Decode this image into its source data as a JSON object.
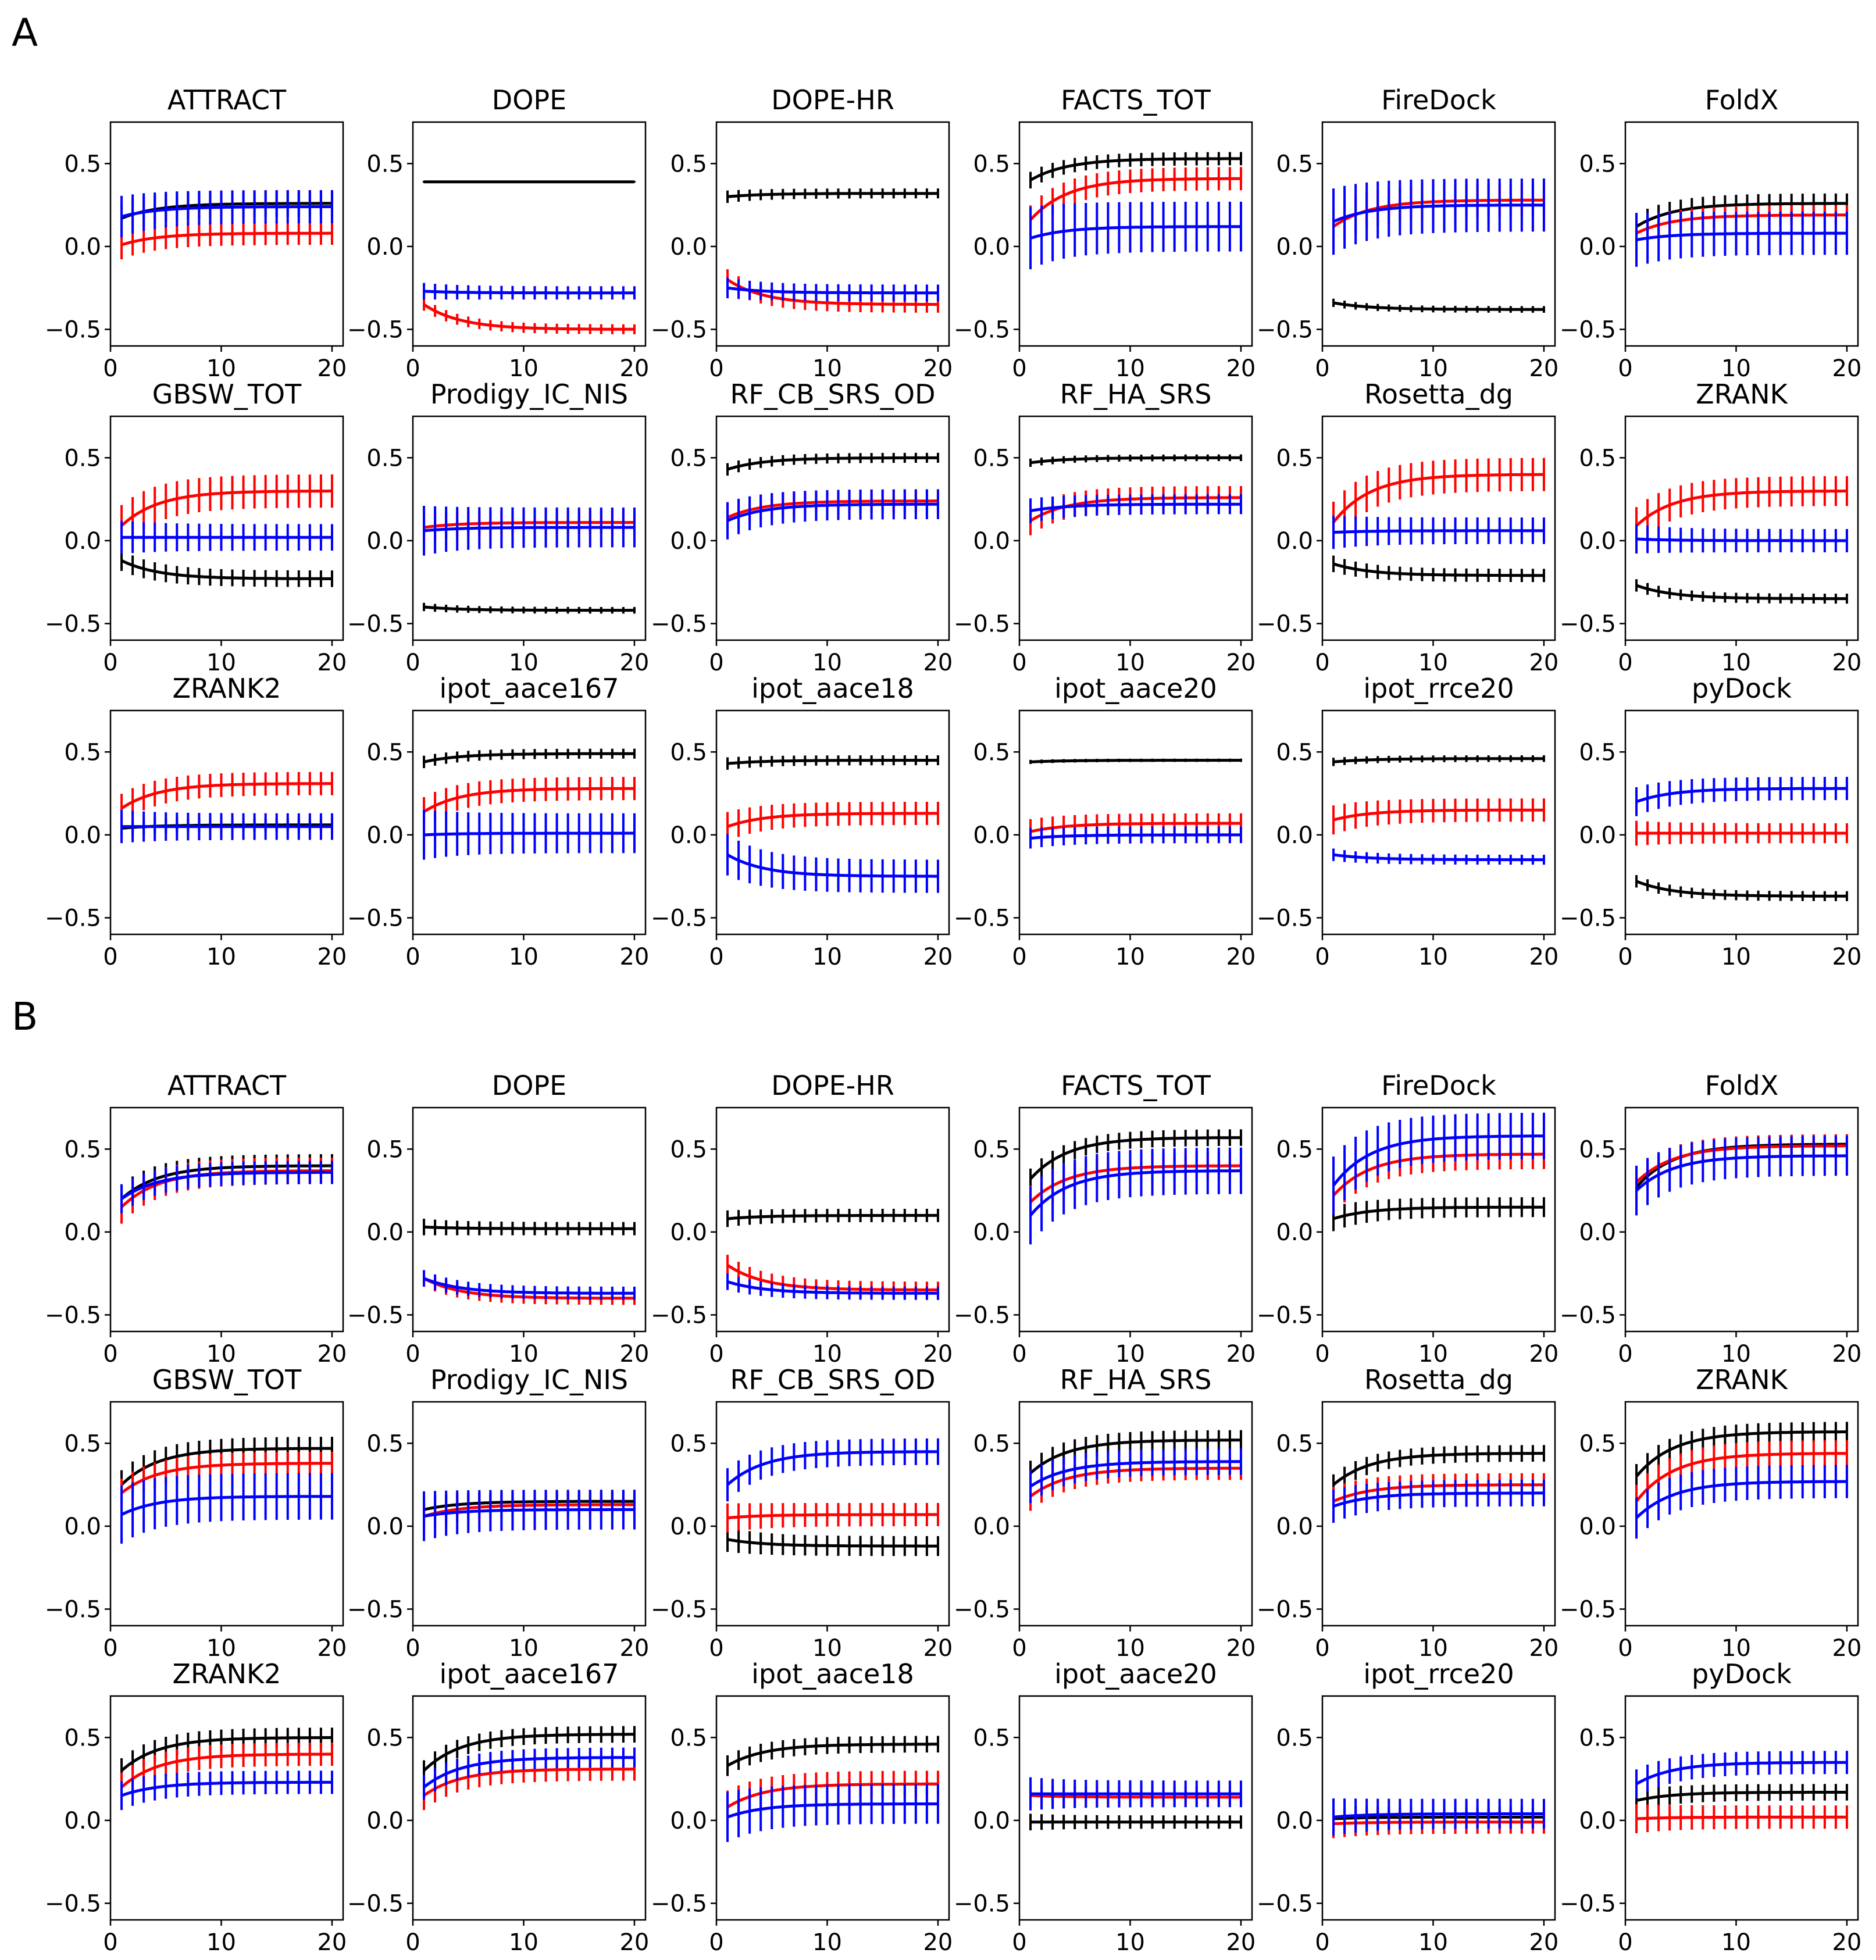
{
  "figure": {
    "panel_labels": [
      "A",
      "B"
    ]
  },
  "colors": {
    "black": "#000000",
    "red": "#ff0000",
    "blue": "#0000ff"
  },
  "chart_data": [
    {
      "panel": "A",
      "type": "line",
      "x_range": [
        1,
        20
      ],
      "xticks": [
        0,
        10,
        20
      ],
      "ylim": [
        -0.6,
        0.75
      ],
      "yticks": [
        -0.5,
        0.0,
        0.5
      ],
      "ytick_labels": [
        "−0.5",
        "0.0",
        "0.5"
      ],
      "legend": "none",
      "subplots": [
        {
          "title": "ATTRACT",
          "series": [
            {
              "name": "black",
              "start": 0.17,
              "end": 0.26,
              "err": 0.08
            },
            {
              "name": "red",
              "start": 0.01,
              "end": 0.08,
              "err": 0.07
            },
            {
              "name": "blue",
              "start": 0.18,
              "end": 0.24,
              "err": 0.1
            }
          ]
        },
        {
          "title": "DOPE",
          "series": [
            {
              "name": "black",
              "start": 0.39,
              "end": 0.39,
              "err": 0.005
            },
            {
              "name": "red",
              "start": -0.35,
              "end": -0.5,
              "err": 0.03
            },
            {
              "name": "blue",
              "start": -0.27,
              "end": -0.28,
              "err": 0.04
            }
          ]
        },
        {
          "title": "DOPE-HR",
          "series": [
            {
              "name": "black",
              "start": 0.3,
              "end": 0.32,
              "err": 0.03
            },
            {
              "name": "red",
              "start": -0.2,
              "end": -0.35,
              "err": 0.05
            },
            {
              "name": "blue",
              "start": -0.25,
              "end": -0.28,
              "err": 0.05
            }
          ]
        },
        {
          "title": "FACTS_TOT",
          "series": [
            {
              "name": "black",
              "start": 0.4,
              "end": 0.53,
              "err": 0.04
            },
            {
              "name": "red",
              "start": 0.16,
              "end": 0.41,
              "err": 0.07
            },
            {
              "name": "blue",
              "start": 0.05,
              "end": 0.12,
              "err": 0.15
            }
          ]
        },
        {
          "title": "FireDock",
          "series": [
            {
              "name": "black",
              "start": -0.34,
              "end": -0.38,
              "err": 0.02
            },
            {
              "name": "red",
              "start": 0.12,
              "end": 0.28,
              "err": 0.1
            },
            {
              "name": "blue",
              "start": 0.15,
              "end": 0.25,
              "err": 0.16
            }
          ]
        },
        {
          "title": "FoldX",
          "series": [
            {
              "name": "black",
              "start": 0.12,
              "end": 0.26,
              "err": 0.06
            },
            {
              "name": "red",
              "start": 0.08,
              "end": 0.19,
              "err": 0.06
            },
            {
              "name": "blue",
              "start": 0.04,
              "end": 0.08,
              "err": 0.13
            }
          ]
        },
        {
          "title": "GBSW_TOT",
          "series": [
            {
              "name": "black",
              "start": -0.12,
              "end": -0.23,
              "err": 0.05
            },
            {
              "name": "red",
              "start": 0.09,
              "end": 0.3,
              "err": 0.1
            },
            {
              "name": "blue",
              "start": 0.02,
              "end": 0.02,
              "err": 0.08
            }
          ]
        },
        {
          "title": "Prodigy_IC_NIS",
          "series": [
            {
              "name": "black",
              "start": -0.4,
              "end": -0.42,
              "err": 0.02
            },
            {
              "name": "red",
              "start": 0.08,
              "end": 0.11,
              "err": 0.07
            },
            {
              "name": "blue",
              "start": 0.06,
              "end": 0.08,
              "err": 0.12
            }
          ]
        },
        {
          "title": "RF_CB_SRS_OD",
          "series": [
            {
              "name": "black",
              "start": 0.43,
              "end": 0.5,
              "err": 0.03
            },
            {
              "name": "red",
              "start": 0.14,
              "end": 0.24,
              "err": 0.07
            },
            {
              "name": "blue",
              "start": 0.12,
              "end": 0.22,
              "err": 0.09
            }
          ]
        },
        {
          "title": "RF_HA_SRS",
          "series": [
            {
              "name": "black",
              "start": 0.47,
              "end": 0.5,
              "err": 0.02
            },
            {
              "name": "red",
              "start": 0.12,
              "end": 0.26,
              "err": 0.07
            },
            {
              "name": "blue",
              "start": 0.18,
              "end": 0.22,
              "err": 0.06
            }
          ]
        },
        {
          "title": "Rosetta_dg",
          "series": [
            {
              "name": "black",
              "start": -0.14,
              "end": -0.21,
              "err": 0.04
            },
            {
              "name": "red",
              "start": 0.11,
              "end": 0.4,
              "err": 0.1
            },
            {
              "name": "blue",
              "start": 0.05,
              "end": 0.06,
              "err": 0.08
            }
          ]
        },
        {
          "title": "ZRANK",
          "series": [
            {
              "name": "black",
              "start": -0.27,
              "end": -0.35,
              "err": 0.03
            },
            {
              "name": "red",
              "start": 0.09,
              "end": 0.3,
              "err": 0.09
            },
            {
              "name": "blue",
              "start": 0.01,
              "end": 0.0,
              "err": 0.07
            }
          ]
        },
        {
          "title": "ZRANK2",
          "series": [
            {
              "name": "black",
              "start": 0.04,
              "end": 0.06,
              "err": 0.04
            },
            {
              "name": "red",
              "start": 0.16,
              "end": 0.31,
              "err": 0.07
            },
            {
              "name": "blue",
              "start": 0.05,
              "end": 0.05,
              "err": 0.08
            }
          ]
        },
        {
          "title": "ipot_aace167",
          "series": [
            {
              "name": "black",
              "start": 0.44,
              "end": 0.49,
              "err": 0.03
            },
            {
              "name": "red",
              "start": 0.14,
              "end": 0.28,
              "err": 0.07
            },
            {
              "name": "blue",
              "start": 0.0,
              "end": 0.01,
              "err": 0.12
            }
          ]
        },
        {
          "title": "ipot_aace18",
          "series": [
            {
              "name": "black",
              "start": 0.43,
              "end": 0.45,
              "err": 0.03
            },
            {
              "name": "red",
              "start": 0.05,
              "end": 0.13,
              "err": 0.07
            },
            {
              "name": "blue",
              "start": -0.12,
              "end": -0.25,
              "err": 0.1
            }
          ]
        },
        {
          "title": "ipot_aace20",
          "series": [
            {
              "name": "black",
              "start": 0.44,
              "end": 0.45,
              "err": 0.01
            },
            {
              "name": "red",
              "start": 0.02,
              "end": 0.07,
              "err": 0.06
            },
            {
              "name": "blue",
              "start": -0.02,
              "end": 0.0,
              "err": 0.05
            }
          ]
        },
        {
          "title": "ipot_rrce20",
          "series": [
            {
              "name": "black",
              "start": 0.44,
              "end": 0.46,
              "err": 0.02
            },
            {
              "name": "red",
              "start": 0.09,
              "end": 0.15,
              "err": 0.07
            },
            {
              "name": "blue",
              "start": -0.12,
              "end": -0.15,
              "err": 0.03
            }
          ]
        },
        {
          "title": "pyDock",
          "series": [
            {
              "name": "black",
              "start": -0.28,
              "end": -0.37,
              "err": 0.03
            },
            {
              "name": "red",
              "start": 0.01,
              "end": 0.01,
              "err": 0.06
            },
            {
              "name": "blue",
              "start": 0.2,
              "end": 0.28,
              "err": 0.07
            }
          ]
        }
      ]
    },
    {
      "panel": "B",
      "type": "line",
      "x_range": [
        1,
        20
      ],
      "xticks": [
        0,
        10,
        20
      ],
      "ylim": [
        -0.6,
        0.75
      ],
      "yticks": [
        -0.5,
        0.0,
        0.5
      ],
      "ytick_labels": [
        "−0.5",
        "0.0",
        "0.5"
      ],
      "legend": "none",
      "subplots": [
        {
          "title": "ATTRACT",
          "series": [
            {
              "name": "black",
              "start": 0.2,
              "end": 0.4,
              "err": 0.07
            },
            {
              "name": "red",
              "start": 0.15,
              "end": 0.37,
              "err": 0.08
            },
            {
              "name": "blue",
              "start": 0.2,
              "end": 0.36,
              "err": 0.07
            }
          ]
        },
        {
          "title": "DOPE",
          "series": [
            {
              "name": "black",
              "start": 0.03,
              "end": 0.02,
              "err": 0.04
            },
            {
              "name": "red",
              "start": -0.28,
              "end": -0.4,
              "err": 0.04
            },
            {
              "name": "blue",
              "start": -0.28,
              "end": -0.37,
              "err": 0.04
            }
          ]
        },
        {
          "title": "DOPE-HR",
          "series": [
            {
              "name": "black",
              "start": 0.08,
              "end": 0.1,
              "err": 0.04
            },
            {
              "name": "red",
              "start": -0.2,
              "end": -0.35,
              "err": 0.05
            },
            {
              "name": "blue",
              "start": -0.3,
              "end": -0.37,
              "err": 0.04
            }
          ]
        },
        {
          "title": "FACTS_TOT",
          "series": [
            {
              "name": "black",
              "start": 0.32,
              "end": 0.57,
              "err": 0.05
            },
            {
              "name": "red",
              "start": 0.18,
              "end": 0.4,
              "err": 0.08
            },
            {
              "name": "blue",
              "start": 0.1,
              "end": 0.37,
              "err": 0.14
            }
          ]
        },
        {
          "title": "FireDock",
          "series": [
            {
              "name": "black",
              "start": 0.08,
              "end": 0.15,
              "err": 0.06
            },
            {
              "name": "red",
              "start": 0.22,
              "end": 0.47,
              "err": 0.09
            },
            {
              "name": "blue",
              "start": 0.28,
              "end": 0.58,
              "err": 0.14
            }
          ]
        },
        {
          "title": "FoldX",
          "series": [
            {
              "name": "black",
              "start": 0.27,
              "end": 0.53,
              "err": 0.06
            },
            {
              "name": "red",
              "start": 0.3,
              "end": 0.52,
              "err": 0.07
            },
            {
              "name": "blue",
              "start": 0.25,
              "end": 0.46,
              "err": 0.12
            }
          ]
        },
        {
          "title": "GBSW_TOT",
          "series": [
            {
              "name": "black",
              "start": 0.25,
              "end": 0.47,
              "err": 0.07
            },
            {
              "name": "red",
              "start": 0.2,
              "end": 0.38,
              "err": 0.07
            },
            {
              "name": "blue",
              "start": 0.07,
              "end": 0.18,
              "err": 0.14
            }
          ]
        },
        {
          "title": "Prodigy_IC_NIS",
          "series": [
            {
              "name": "black",
              "start": 0.1,
              "end": 0.15,
              "err": 0.06
            },
            {
              "name": "red",
              "start": 0.06,
              "end": 0.13,
              "err": 0.07
            },
            {
              "name": "blue",
              "start": 0.06,
              "end": 0.1,
              "err": 0.12
            }
          ]
        },
        {
          "title": "RF_CB_SRS_OD",
          "series": [
            {
              "name": "black",
              "start": -0.08,
              "end": -0.12,
              "err": 0.06
            },
            {
              "name": "red",
              "start": 0.05,
              "end": 0.07,
              "err": 0.07
            },
            {
              "name": "blue",
              "start": 0.25,
              "end": 0.45,
              "err": 0.08
            }
          ]
        },
        {
          "title": "RF_HA_SRS",
          "series": [
            {
              "name": "black",
              "start": 0.32,
              "end": 0.52,
              "err": 0.06
            },
            {
              "name": "red",
              "start": 0.18,
              "end": 0.35,
              "err": 0.07
            },
            {
              "name": "blue",
              "start": 0.24,
              "end": 0.39,
              "err": 0.08
            }
          ]
        },
        {
          "title": "Rosetta_dg",
          "series": [
            {
              "name": "black",
              "start": 0.25,
              "end": 0.44,
              "err": 0.05
            },
            {
              "name": "red",
              "start": 0.15,
              "end": 0.25,
              "err": 0.07
            },
            {
              "name": "blue",
              "start": 0.12,
              "end": 0.2,
              "err": 0.08
            }
          ]
        },
        {
          "title": "ZRANK",
          "series": [
            {
              "name": "black",
              "start": 0.3,
              "end": 0.57,
              "err": 0.06
            },
            {
              "name": "red",
              "start": 0.15,
              "end": 0.44,
              "err": 0.08
            },
            {
              "name": "blue",
              "start": 0.05,
              "end": 0.27,
              "err": 0.1
            }
          ]
        },
        {
          "title": "ZRANK2",
          "series": [
            {
              "name": "black",
              "start": 0.3,
              "end": 0.5,
              "err": 0.06
            },
            {
              "name": "red",
              "start": 0.2,
              "end": 0.4,
              "err": 0.07
            },
            {
              "name": "blue",
              "start": 0.15,
              "end": 0.23,
              "err": 0.07
            }
          ]
        },
        {
          "title": "ipot_aace167",
          "series": [
            {
              "name": "black",
              "start": 0.3,
              "end": 0.52,
              "err": 0.05
            },
            {
              "name": "red",
              "start": 0.15,
              "end": 0.31,
              "err": 0.07
            },
            {
              "name": "blue",
              "start": 0.2,
              "end": 0.38,
              "err": 0.06
            }
          ]
        },
        {
          "title": "ipot_aace18",
          "series": [
            {
              "name": "black",
              "start": 0.33,
              "end": 0.46,
              "err": 0.05
            },
            {
              "name": "red",
              "start": 0.08,
              "end": 0.22,
              "err": 0.08
            },
            {
              "name": "blue",
              "start": 0.02,
              "end": 0.1,
              "err": 0.12
            }
          ]
        },
        {
          "title": "ipot_aace20",
          "series": [
            {
              "name": "black",
              "start": -0.01,
              "end": -0.01,
              "err": 0.04
            },
            {
              "name": "red",
              "start": 0.15,
              "end": 0.14,
              "err": 0.06
            },
            {
              "name": "blue",
              "start": 0.16,
              "end": 0.16,
              "err": 0.08
            }
          ]
        },
        {
          "title": "ipot_rrce20",
          "series": [
            {
              "name": "black",
              "start": 0.01,
              "end": 0.02,
              "err": 0.06
            },
            {
              "name": "red",
              "start": -0.02,
              "end": -0.01,
              "err": 0.07
            },
            {
              "name": "blue",
              "start": 0.02,
              "end": 0.04,
              "err": 0.09
            }
          ]
        },
        {
          "title": "pyDock",
          "series": [
            {
              "name": "black",
              "start": 0.12,
              "end": 0.17,
              "err": 0.05
            },
            {
              "name": "red",
              "start": 0.01,
              "end": 0.02,
              "err": 0.07
            },
            {
              "name": "blue",
              "start": 0.22,
              "end": 0.35,
              "err": 0.07
            }
          ]
        }
      ]
    }
  ]
}
